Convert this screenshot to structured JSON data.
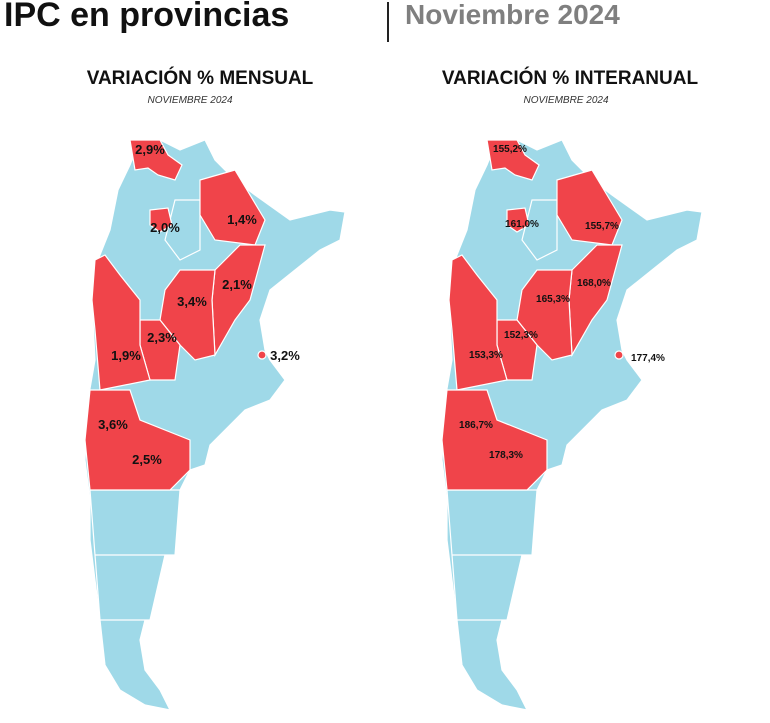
{
  "header": {
    "title": "IPC en provincias",
    "period": "Noviembre 2024"
  },
  "maps": [
    {
      "title": "VARIACIÓN % MENSUAL",
      "subtitle": "NOVIEMBRE 2024",
      "labels": [
        "2,9%",
        "2,0%",
        "1,4%",
        "3,4%",
        "2,1%",
        "2,3%",
        "1,9%",
        "3,2%",
        "3,6%",
        "2,5%"
      ]
    },
    {
      "title": "VARIACIÓN % INTERANUAL",
      "subtitle": "NOVIEMBRE 2024",
      "labels": [
        "155,2%",
        "161,0%",
        "155,7%",
        "165,3%",
        "168,0%",
        "152,3%",
        "153,3%",
        "177,4%",
        "186,7%",
        "178,3%"
      ]
    }
  ]
}
